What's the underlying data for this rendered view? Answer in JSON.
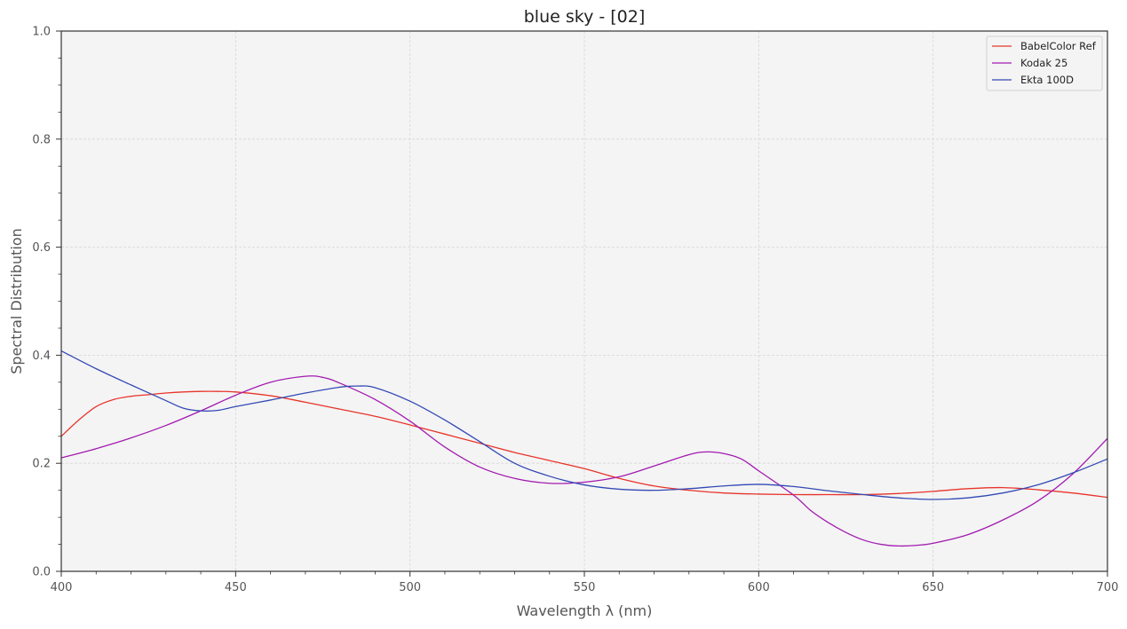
{
  "chart_data": {
    "type": "line",
    "title": "blue sky - [02]",
    "xlabel": "Wavelength λ (nm)",
    "ylabel": "Spectral Distribution",
    "xlim": [
      400,
      700
    ],
    "ylim": [
      0,
      1
    ],
    "xticks": [
      400,
      450,
      500,
      550,
      600,
      650,
      700
    ],
    "yticks": [
      0.0,
      0.2,
      0.4,
      0.6,
      0.8,
      1.0
    ],
    "grid": true,
    "legend_position": "top-right",
    "series": [
      {
        "name": "BabelColor Ref",
        "color": "#e8342b",
        "points": [
          [
            400,
            0.25
          ],
          [
            405,
            0.28
          ],
          [
            410,
            0.305
          ],
          [
            415,
            0.318
          ],
          [
            420,
            0.324
          ],
          [
            425,
            0.327
          ],
          [
            430,
            0.33
          ],
          [
            435,
            0.332
          ],
          [
            440,
            0.333
          ],
          [
            445,
            0.333
          ],
          [
            450,
            0.332
          ],
          [
            460,
            0.325
          ],
          [
            470,
            0.313
          ],
          [
            480,
            0.3
          ],
          [
            490,
            0.287
          ],
          [
            500,
            0.271
          ],
          [
            510,
            0.254
          ],
          [
            520,
            0.237
          ],
          [
            530,
            0.22
          ],
          [
            540,
            0.205
          ],
          [
            550,
            0.19
          ],
          [
            560,
            0.172
          ],
          [
            570,
            0.158
          ],
          [
            580,
            0.15
          ],
          [
            590,
            0.145
          ],
          [
            600,
            0.143
          ],
          [
            610,
            0.142
          ],
          [
            620,
            0.142
          ],
          [
            630,
            0.142
          ],
          [
            640,
            0.144
          ],
          [
            650,
            0.148
          ],
          [
            660,
            0.153
          ],
          [
            670,
            0.155
          ],
          [
            680,
            0.151
          ],
          [
            690,
            0.145
          ],
          [
            700,
            0.137
          ]
        ]
      },
      {
        "name": "Kodak 25",
        "color": "#a21bb0",
        "points": [
          [
            400,
            0.21
          ],
          [
            410,
            0.227
          ],
          [
            420,
            0.247
          ],
          [
            430,
            0.27
          ],
          [
            440,
            0.297
          ],
          [
            450,
            0.326
          ],
          [
            460,
            0.35
          ],
          [
            470,
            0.361
          ],
          [
            475,
            0.359
          ],
          [
            480,
            0.348
          ],
          [
            490,
            0.318
          ],
          [
            500,
            0.278
          ],
          [
            510,
            0.23
          ],
          [
            520,
            0.193
          ],
          [
            530,
            0.172
          ],
          [
            540,
            0.163
          ],
          [
            550,
            0.165
          ],
          [
            560,
            0.175
          ],
          [
            570,
            0.195
          ],
          [
            580,
            0.216
          ],
          [
            585,
            0.221
          ],
          [
            590,
            0.218
          ],
          [
            595,
            0.208
          ],
          [
            600,
            0.186
          ],
          [
            610,
            0.141
          ],
          [
            615,
            0.112
          ],
          [
            620,
            0.09
          ],
          [
            625,
            0.072
          ],
          [
            630,
            0.058
          ],
          [
            635,
            0.05
          ],
          [
            640,
            0.047
          ],
          [
            645,
            0.048
          ],
          [
            650,
            0.052
          ],
          [
            660,
            0.068
          ],
          [
            670,
            0.095
          ],
          [
            680,
            0.13
          ],
          [
            690,
            0.18
          ],
          [
            700,
            0.246
          ]
        ]
      },
      {
        "name": "Ekta 100D",
        "color": "#3349b5",
        "points": [
          [
            400,
            0.408
          ],
          [
            410,
            0.375
          ],
          [
            420,
            0.345
          ],
          [
            430,
            0.316
          ],
          [
            435,
            0.302
          ],
          [
            440,
            0.297
          ],
          [
            445,
            0.298
          ],
          [
            450,
            0.305
          ],
          [
            460,
            0.317
          ],
          [
            470,
            0.33
          ],
          [
            480,
            0.341
          ],
          [
            485,
            0.343
          ],
          [
            490,
            0.34
          ],
          [
            500,
            0.315
          ],
          [
            510,
            0.28
          ],
          [
            520,
            0.24
          ],
          [
            530,
            0.2
          ],
          [
            540,
            0.176
          ],
          [
            550,
            0.16
          ],
          [
            560,
            0.152
          ],
          [
            570,
            0.15
          ],
          [
            580,
            0.153
          ],
          [
            590,
            0.158
          ],
          [
            600,
            0.161
          ],
          [
            610,
            0.157
          ],
          [
            620,
            0.149
          ],
          [
            630,
            0.142
          ],
          [
            640,
            0.136
          ],
          [
            650,
            0.133
          ],
          [
            660,
            0.136
          ],
          [
            670,
            0.145
          ],
          [
            680,
            0.16
          ],
          [
            690,
            0.182
          ],
          [
            700,
            0.208
          ]
        ]
      }
    ]
  }
}
